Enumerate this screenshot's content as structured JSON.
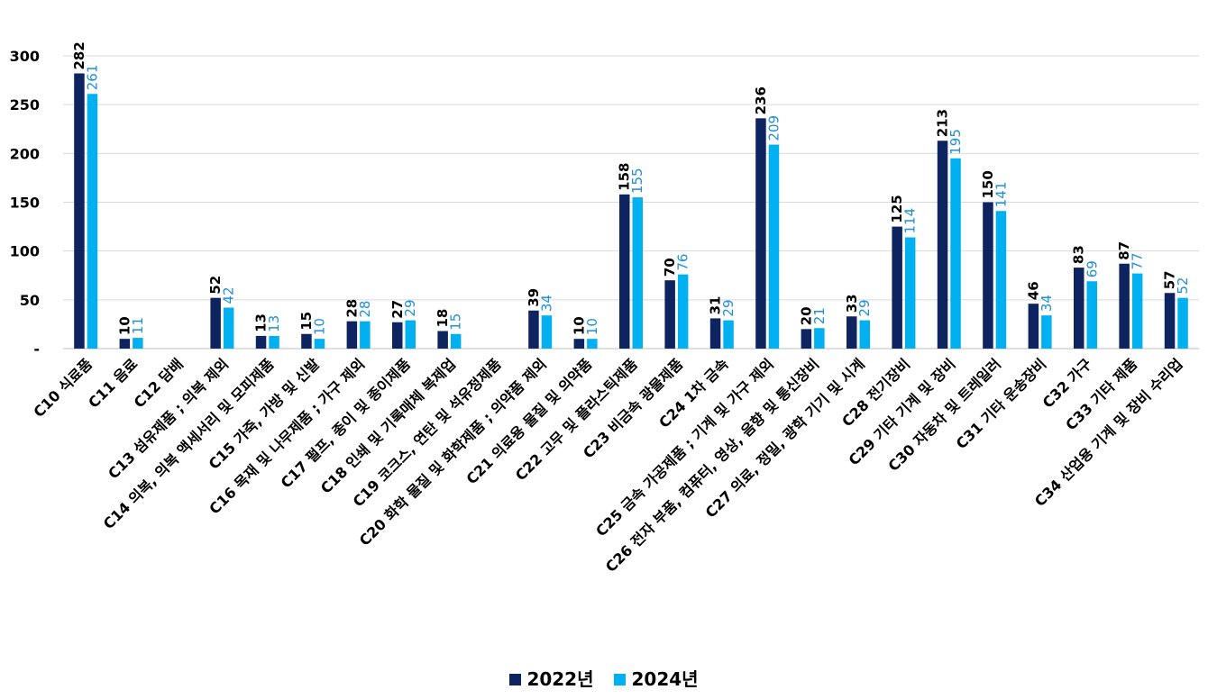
{
  "chart_data": {
    "type": "bar",
    "title": "",
    "xlabel": "",
    "ylabel": "",
    "ylim": [
      0,
      300
    ],
    "yticks": [
      0,
      50,
      100,
      150,
      200,
      250,
      300
    ],
    "ytick_labels": [
      "-",
      "50",
      "100",
      "150",
      "200",
      "250",
      "300"
    ],
    "grid": true,
    "legend_position": "bottom-center",
    "categories": [
      "C10 식료품",
      "C11 음료",
      "C12 담배",
      "C13 섬유제품 ; 의복 제외",
      "C14 의복, 의복 액세서리 및 모피제품",
      "C15 가죽, 가방 및 신발",
      "C16 목재 및 나무제품 ; 가구 제외",
      "C17 펄프, 종이 및 종이제품",
      "C18 인쇄 및 기록매체 복제업",
      "C19 코크스, 연탄 및 석유정제품",
      "C20 화학 물질 및 화학제품 ; 의약품 제외",
      "C21 의료용 물질 및 의약품",
      "C22 고무 및 플라스틱제품",
      "C23 비금속 광물제품",
      "C24 1차 금속",
      "C25 금속 가공제품 ; 기계 및 가구 제외",
      "C26 전자 부품, 컴퓨터, 영상, 음향 및 통신장비",
      "C27 의료, 정밀, 광학 기기 및 시계",
      "C28 전기장비",
      "C29 기타 기계 및 장비",
      "C30 자동차 및 트레일러",
      "C31 기타 운송장비",
      "C32 가구",
      "C33 기타 제품",
      "C34 산업용 기계 및 장비 수리업"
    ],
    "series": [
      {
        "name": "2022년",
        "color": "#0d2461",
        "values": [
          282,
          10,
          null,
          52,
          13,
          15,
          28,
          27,
          18,
          null,
          39,
          10,
          158,
          70,
          31,
          236,
          20,
          33,
          125,
          213,
          150,
          46,
          83,
          87,
          57
        ]
      },
      {
        "name": "2024년",
        "color": "#00b0f0",
        "values": [
          261,
          11,
          null,
          42,
          13,
          10,
          28,
          29,
          15,
          null,
          34,
          10,
          155,
          76,
          29,
          209,
          21,
          29,
          114,
          195,
          141,
          34,
          69,
          77,
          52
        ]
      }
    ]
  }
}
